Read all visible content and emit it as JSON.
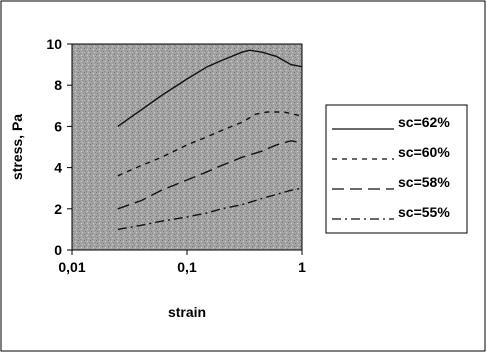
{
  "chart_data": {
    "type": "line",
    "title": "",
    "xlabel": "strain",
    "ylabel": "stress, Pa",
    "xscale": "log",
    "xlim": [
      0.01,
      1
    ],
    "ylim": [
      0,
      10
    ],
    "x_ticks": [
      "0,01",
      "0,1",
      "1"
    ],
    "y_ticks": [
      "0",
      "2",
      "4",
      "6",
      "8",
      "10"
    ],
    "grid": false,
    "legend_position": "right",
    "plot_background": "#9a9a9a",
    "series": [
      {
        "name": "sc=62%",
        "line_style": "solid",
        "x": [
          0.025,
          0.04,
          0.06,
          0.1,
          0.15,
          0.2,
          0.3,
          0.35,
          0.45,
          0.6,
          0.8,
          1.0
        ],
        "y": [
          6.0,
          6.8,
          7.5,
          8.3,
          8.9,
          9.2,
          9.6,
          9.7,
          9.6,
          9.4,
          9.0,
          8.9
        ]
      },
      {
        "name": "sc=60%",
        "line_style": "dashed",
        "x": [
          0.025,
          0.04,
          0.06,
          0.1,
          0.15,
          0.2,
          0.3,
          0.4,
          0.5,
          0.7,
          1.0
        ],
        "y": [
          3.6,
          4.1,
          4.5,
          5.1,
          5.5,
          5.8,
          6.2,
          6.6,
          6.7,
          6.7,
          6.5
        ]
      },
      {
        "name": "sc=58%",
        "line_style": "long-dash",
        "x": [
          0.025,
          0.04,
          0.06,
          0.1,
          0.15,
          0.2,
          0.3,
          0.45,
          0.6,
          0.8,
          1.0
        ],
        "y": [
          2.0,
          2.4,
          2.9,
          3.4,
          3.8,
          4.1,
          4.5,
          4.8,
          5.1,
          5.3,
          5.2
        ]
      },
      {
        "name": "sc=55%",
        "line_style": "dash-dot",
        "x": [
          0.025,
          0.04,
          0.06,
          0.1,
          0.15,
          0.2,
          0.3,
          0.45,
          0.6,
          0.8,
          1.0
        ],
        "y": [
          1.0,
          1.2,
          1.4,
          1.6,
          1.8,
          2.0,
          2.2,
          2.5,
          2.7,
          2.9,
          3.0
        ]
      }
    ]
  }
}
